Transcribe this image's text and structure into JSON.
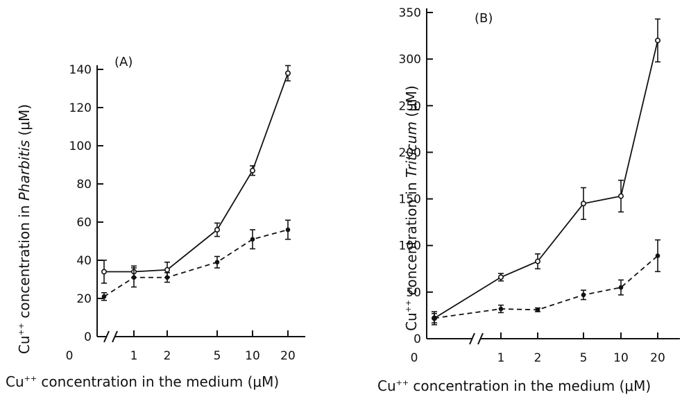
{
  "chart_data": [
    {
      "type": "line",
      "panel_label": "(A)",
      "ylabel_pre": "Cu",
      "ylabel_sup": "++",
      "ylabel_mid": " concentration in ",
      "ylabel_species": "Pharbitis",
      "ylabel_unit": "(μM)",
      "xlabel_pre": "Cu",
      "xlabel_sup": "++",
      "xlabel_rest": " concentration in the medium (μM)",
      "x_ticks": [
        "0",
        "1",
        "2",
        "5",
        "10",
        "20"
      ],
      "y_ticks": [
        "0",
        "20",
        "40",
        "60",
        "80",
        "100",
        "120",
        "140"
      ],
      "ylim": [
        0,
        140
      ],
      "x_break": true,
      "series": [
        {
          "style": "solid-open",
          "points": [
            {
              "x": "0",
              "y": 34,
              "err": 6
            },
            {
              "x": "1",
              "y": 34,
              "err": 3
            },
            {
              "x": "2",
              "y": 35,
              "err": 4
            },
            {
              "x": "5",
              "y": 56,
              "err": 3.5
            },
            {
              "x": "10",
              "y": 87,
              "err": 2.5
            },
            {
              "x": "20",
              "y": 138,
              "err": 4
            }
          ]
        },
        {
          "style": "dashed-filled",
          "points": [
            {
              "x": "0",
              "y": 21,
              "err": 2
            },
            {
              "x": "1",
              "y": 31,
              "err": 5
            },
            {
              "x": "2",
              "y": 31,
              "err": 2.5
            },
            {
              "x": "5",
              "y": 39,
              "err": 3
            },
            {
              "x": "10",
              "y": 51,
              "err": 5
            },
            {
              "x": "20",
              "y": 56,
              "err": 5
            }
          ]
        }
      ]
    },
    {
      "type": "line",
      "panel_label": "(B)",
      "ylabel_pre": "Cu",
      "ylabel_sup": "++",
      "ylabel_mid": " concentration in ",
      "ylabel_species": "Triticum",
      "ylabel_unit": "(μM)",
      "xlabel_pre": "Cu",
      "xlabel_sup": "++",
      "xlabel_rest": " concentration in the medium (μM)",
      "x_ticks": [
        "0",
        "1",
        "2",
        "5",
        "10",
        "20"
      ],
      "y_ticks": [
        "0",
        "50",
        "100",
        "150",
        "200",
        "250",
        "300",
        "350"
      ],
      "ylim": [
        0,
        350
      ],
      "x_break": true,
      "series": [
        {
          "style": "solid-open",
          "points": [
            {
              "x": "0",
              "y": 22,
              "err": 7
            },
            {
              "x": "1",
              "y": 66,
              "err": 4
            },
            {
              "x": "2",
              "y": 83,
              "err": 8
            },
            {
              "x": "5",
              "y": 145,
              "err": 17
            },
            {
              "x": "10",
              "y": 153,
              "err": 17
            },
            {
              "x": "20",
              "y": 320,
              "err": 23
            }
          ]
        },
        {
          "style": "dashed-filled",
          "points": [
            {
              "x": "0",
              "y": 22,
              "err": 5
            },
            {
              "x": "1",
              "y": 32,
              "err": 4
            },
            {
              "x": "2",
              "y": 31,
              "err": 2
            },
            {
              "x": "5",
              "y": 47,
              "err": 5
            },
            {
              "x": "10",
              "y": 55,
              "err": 8
            },
            {
              "x": "20",
              "y": 89,
              "err": 17
            }
          ]
        }
      ]
    }
  ]
}
